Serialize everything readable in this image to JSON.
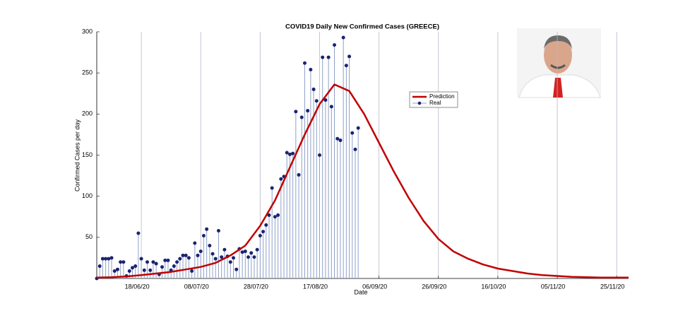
{
  "chart_data": {
    "type": "line",
    "title": "COVID19 Daily New Confirmed Cases (GREECE)",
    "x_label": "Date",
    "y_label": "Confirmed Cases per day",
    "xlim": [
      "03/06/20",
      "29/11/20"
    ],
    "xticks": [
      "18/06/20",
      "08/07/20",
      "28/07/20",
      "17/08/20",
      "06/09/20",
      "26/09/20",
      "16/10/20",
      "05/11/20",
      "25/11/20"
    ],
    "ylim": [
      0,
      300
    ],
    "yticks": [
      50,
      100,
      150,
      200,
      250,
      300
    ],
    "grid": "x",
    "legend": "upper right",
    "series": [
      {
        "name": "Prediction",
        "color": "#c00000",
        "style": "line",
        "x": [
          "03/06/20",
          "08/06/20",
          "13/06/20",
          "18/06/20",
          "23/06/20",
          "28/06/20",
          "03/07/20",
          "08/07/20",
          "13/07/20",
          "18/07/20",
          "23/07/20",
          "28/07/20",
          "02/08/20",
          "07/08/20",
          "12/08/20",
          "17/08/20",
          "22/08/20",
          "27/08/20",
          "01/09/20",
          "06/09/20",
          "11/09/20",
          "16/09/20",
          "21/09/20",
          "26/09/20",
          "01/10/20",
          "06/10/20",
          "11/10/20",
          "16/10/20",
          "21/10/20",
          "26/10/20",
          "31/10/20",
          "05/11/20",
          "10/11/20",
          "15/11/20",
          "20/11/20",
          "25/11/20",
          "29/11/20"
        ],
        "values": [
          1,
          1.5,
          2.5,
          4,
          6,
          8,
          11,
          14,
          19,
          28,
          40,
          64,
          95,
          135,
          175,
          212,
          236,
          228,
          200,
          165,
          130,
          98,
          70,
          48,
          33,
          24,
          17,
          12,
          9,
          6,
          4,
          3,
          2,
          1.5,
          1,
          1,
          1
        ]
      },
      {
        "name": "Real",
        "color": "#1a2470",
        "style": "stem",
        "x": [
          "03/06/20",
          "04/06/20",
          "05/06/20",
          "06/06/20",
          "07/06/20",
          "08/06/20",
          "09/06/20",
          "10/06/20",
          "11/06/20",
          "12/06/20",
          "13/06/20",
          "14/06/20",
          "15/06/20",
          "16/06/20",
          "17/06/20",
          "18/06/20",
          "19/06/20",
          "20/06/20",
          "21/06/20",
          "22/06/20",
          "23/06/20",
          "24/06/20",
          "25/06/20",
          "26/06/20",
          "27/06/20",
          "28/06/20",
          "29/06/20",
          "30/06/20",
          "01/07/20",
          "02/07/20",
          "03/07/20",
          "04/07/20",
          "05/07/20",
          "06/07/20",
          "07/07/20",
          "08/07/20",
          "09/07/20",
          "10/07/20",
          "11/07/20",
          "12/07/20",
          "13/07/20",
          "14/07/20",
          "15/07/20",
          "16/07/20",
          "17/07/20",
          "18/07/20",
          "19/07/20",
          "20/07/20",
          "21/07/20",
          "22/07/20",
          "23/07/20",
          "24/07/20",
          "25/07/20",
          "26/07/20",
          "27/07/20",
          "28/07/20",
          "29/07/20",
          "30/07/20",
          "31/07/20",
          "01/08/20",
          "02/08/20",
          "03/08/20",
          "04/08/20",
          "05/08/20",
          "06/08/20",
          "07/08/20",
          "08/08/20",
          "09/08/20",
          "10/08/20",
          "11/08/20",
          "12/08/20",
          "13/08/20",
          "14/08/20",
          "15/08/20",
          "16/08/20",
          "17/08/20",
          "18/08/20",
          "19/08/20",
          "20/08/20",
          "21/08/20",
          "22/08/20",
          "23/08/20",
          "24/08/20",
          "25/08/20",
          "26/08/20",
          "27/08/20",
          "28/08/20",
          "29/08/20",
          "30/08/20"
        ],
        "values": [
          0,
          15,
          24,
          24,
          24,
          25,
          9,
          11,
          20,
          20,
          3,
          9,
          13,
          15,
          55,
          24,
          10,
          20,
          10,
          20,
          18,
          5,
          14,
          22,
          22,
          10,
          15,
          20,
          24,
          28,
          28,
          25,
          9,
          43,
          28,
          33,
          52,
          60,
          40,
          30,
          24,
          58,
          26,
          35,
          27,
          20,
          25,
          11,
          36,
          32,
          33,
          26,
          31,
          26,
          35,
          52,
          57,
          65,
          77,
          110,
          75,
          77,
          121,
          124,
          153,
          151,
          152,
          203,
          126,
          196,
          262,
          204,
          254,
          230,
          216,
          150,
          269,
          217,
          269,
          209,
          284,
          170,
          168,
          293,
          259,
          270,
          177,
          157,
          183
        ]
      }
    ]
  }
}
